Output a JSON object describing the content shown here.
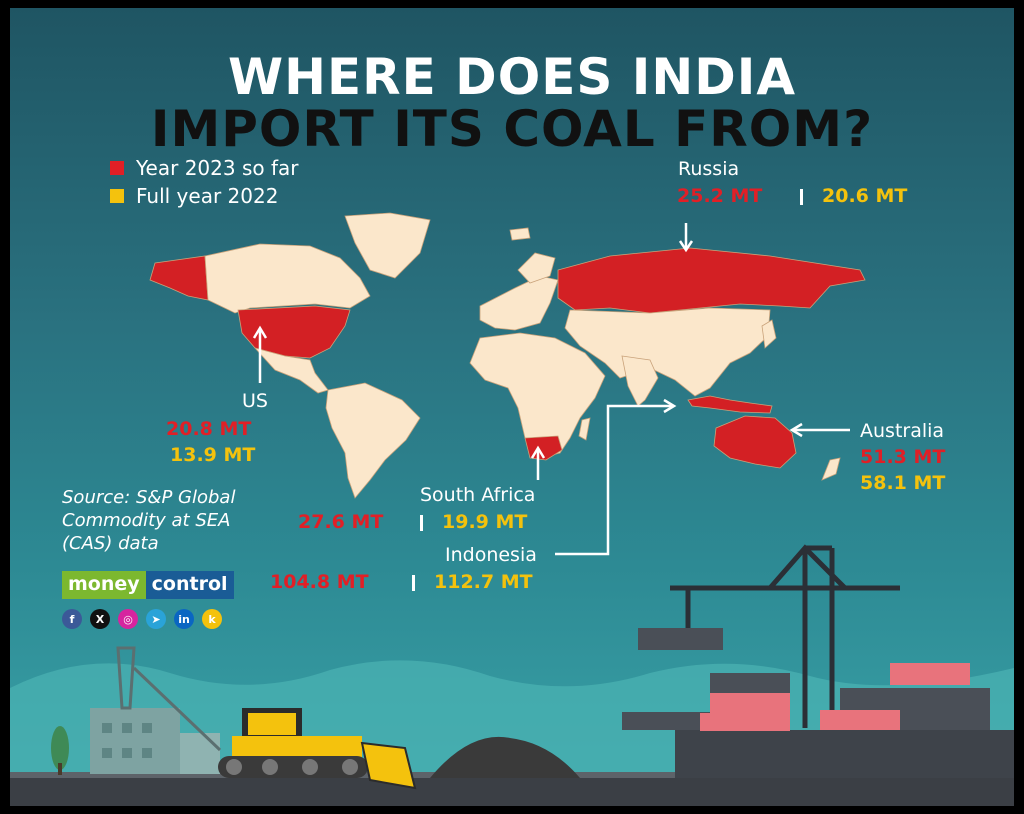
{
  "title": {
    "line1": "WHERE DOES INDIA",
    "line2": "IMPORT ITS COAL FROM?"
  },
  "legend": [
    {
      "label": "Year 2023 so far",
      "color": "#e11f26"
    },
    {
      "label": "Full year 2022",
      "color": "#f4c20d"
    }
  ],
  "countries": {
    "russia": {
      "name": "Russia",
      "v2023": "25.2 MT",
      "v2022": "20.6 MT"
    },
    "us": {
      "name": "US",
      "v2023": "20.8 MT",
      "v2022": "13.9 MT"
    },
    "australia": {
      "name": "Australia",
      "v2023": "51.3 MT",
      "v2022": "58.1 MT"
    },
    "south_africa": {
      "name": "South Africa",
      "v2023": "27.6 MT",
      "v2022": "19.9 MT"
    },
    "indonesia": {
      "name": "Indonesia",
      "v2023": "104.8 MT",
      "v2022": "112.7 MT"
    }
  },
  "source": "Source: S&P Global Commodity at SEA (CAS) data",
  "logo": {
    "part1": "money",
    "part2": "control"
  },
  "socials": [
    {
      "icon": "facebook-icon",
      "glyph": "f",
      "color": "#3b5998"
    },
    {
      "icon": "x-icon",
      "glyph": "X",
      "color": "#111111"
    },
    {
      "icon": "instagram-icon",
      "glyph": "◎",
      "color": "#d6249f"
    },
    {
      "icon": "telegram-icon",
      "glyph": "➤",
      "color": "#2aa3d8"
    },
    {
      "icon": "linkedin-icon",
      "glyph": "in",
      "color": "#0a66c2"
    },
    {
      "icon": "koo-icon",
      "glyph": "k",
      "color": "#f4c20d"
    }
  ]
}
